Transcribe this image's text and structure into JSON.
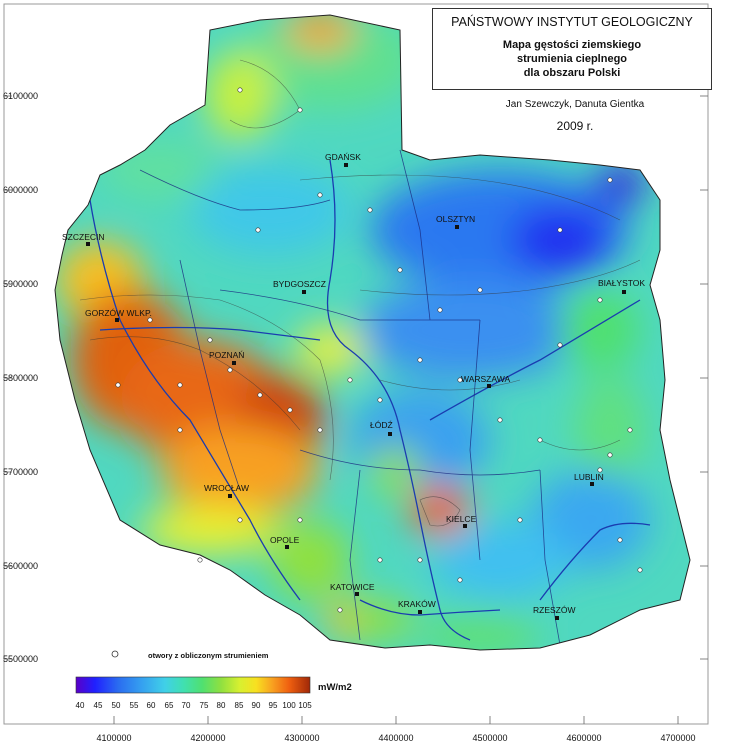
{
  "title": {
    "institute": "PAŃSTWOWY INSTYTUT GEOLOGICZNY",
    "line1": "Mapa gęstości ziemskiego",
    "line2": "strumienia cieplnego",
    "line3": "dla obszaru Polski"
  },
  "authors": "Jan Szewczyk, Danuta Gientka",
  "year": "2009 r.",
  "y_ticks": [
    "6100000",
    "6000000",
    "5900000",
    "5800000",
    "5700000",
    "5600000",
    "5500000"
  ],
  "x_ticks": [
    "4100000",
    "4200000",
    "4300000",
    "4400000",
    "4500000",
    "4600000",
    "4700000"
  ],
  "cities": [
    "GDAŃSK",
    "OLSZTYN",
    "SZCZECIN",
    "BYDGOSZCZ",
    "BIAŁYSTOK",
    "GORZÓW WLKP.",
    "POZNAŃ",
    "WARSZAWA",
    "ŁÓDŹ",
    "LUBLIN",
    "WROCŁAW",
    "KIELCE",
    "OPOLE",
    "KATOWICE",
    "KRAKÓW",
    "RZESZÓW"
  ],
  "legend": {
    "note": "otwory z obliczonym strumieniem",
    "unit": "mW/m2",
    "ticks": [
      "40",
      "45",
      "50",
      "55",
      "60",
      "65",
      "70",
      "75",
      "80",
      "85",
      "90",
      "95",
      "100",
      "105"
    ],
    "colors": [
      "#5a00c8",
      "#2020ff",
      "#2a6cf0",
      "#35a0f0",
      "#40d0e8",
      "#40e0b0",
      "#50e070",
      "#90e040",
      "#d8f030",
      "#f8e020",
      "#f8a020",
      "#f06010",
      "#d03010",
      "#a02808"
    ]
  }
}
